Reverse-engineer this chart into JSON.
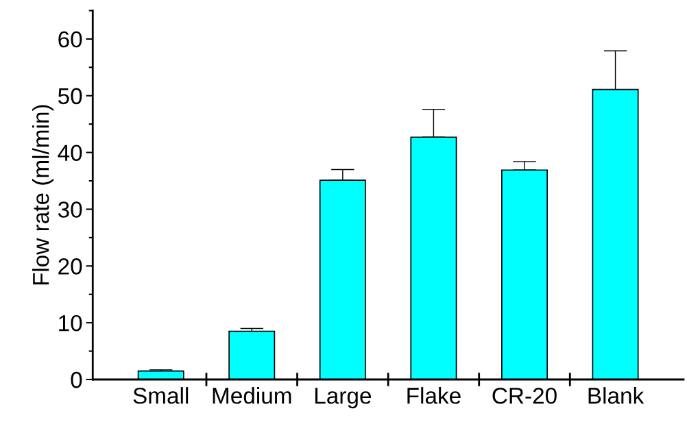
{
  "chart_data": {
    "type": "bar",
    "ylabel": "Flow rate (ml/min)",
    "categories": [
      "Small",
      "Medium",
      "Large",
      "Flake",
      "CR-20",
      "Blank"
    ],
    "values": [
      1.5,
      8.5,
      35.1,
      42.7,
      36.9,
      51.1
    ],
    "errors": [
      [
        1.5,
        1.7
      ],
      [
        8.5,
        9.0
      ],
      [
        35.1,
        37.0
      ],
      [
        42.7,
        47.6
      ],
      [
        36.9,
        38.4
      ],
      [
        51.1,
        57.9
      ]
    ],
    "color": "#00ffff",
    "ylim": [
      0,
      65
    ],
    "yticks": [
      0,
      10,
      20,
      30,
      40,
      50,
      60
    ],
    "grid": false,
    "legend": false
  }
}
